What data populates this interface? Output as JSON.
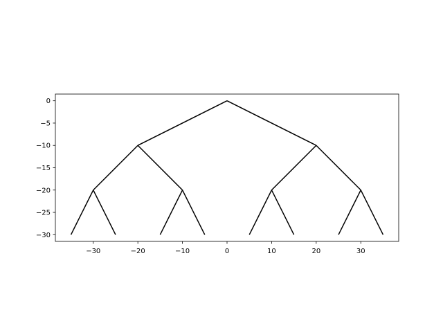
{
  "chart_data": {
    "type": "line",
    "title": "",
    "xlabel": "",
    "ylabel": "",
    "xlim": [
      -38.5,
      38.5
    ],
    "ylim": [
      -31.5,
      1.5
    ],
    "grid": false,
    "aspect": "equal",
    "line_color": "#000000",
    "x_ticks": [
      -30,
      -20,
      -10,
      0,
      10,
      20,
      30
    ],
    "x_tick_labels": [
      "−30",
      "−20",
      "−10",
      "0",
      "10",
      "20",
      "30"
    ],
    "y_ticks": [
      0,
      -5,
      -10,
      -15,
      -20,
      -25,
      -30
    ],
    "y_tick_labels": [
      "0",
      "−5",
      "−10",
      "−15",
      "−20",
      "−25",
      "−30"
    ],
    "segments": [
      {
        "x": [
          0,
          -20
        ],
        "y": [
          0,
          -10
        ]
      },
      {
        "x": [
          0,
          20
        ],
        "y": [
          0,
          -10
        ]
      },
      {
        "x": [
          -20,
          -30
        ],
        "y": [
          -10,
          -20
        ]
      },
      {
        "x": [
          -20,
          -10
        ],
        "y": [
          -10,
          -20
        ]
      },
      {
        "x": [
          20,
          10
        ],
        "y": [
          -10,
          -20
        ]
      },
      {
        "x": [
          20,
          30
        ],
        "y": [
          -10,
          -20
        ]
      },
      {
        "x": [
          -30,
          -35
        ],
        "y": [
          -20,
          -30
        ]
      },
      {
        "x": [
          -30,
          -25
        ],
        "y": [
          -20,
          -30
        ]
      },
      {
        "x": [
          -10,
          -15
        ],
        "y": [
          -20,
          -30
        ]
      },
      {
        "x": [
          -10,
          -5
        ],
        "y": [
          -20,
          -30
        ]
      },
      {
        "x": [
          10,
          5
        ],
        "y": [
          -20,
          -30
        ]
      },
      {
        "x": [
          10,
          15
        ],
        "y": [
          -20,
          -30
        ]
      },
      {
        "x": [
          30,
          25
        ],
        "y": [
          -20,
          -30
        ]
      },
      {
        "x": [
          30,
          35
        ],
        "y": [
          -20,
          -30
        ]
      }
    ]
  }
}
